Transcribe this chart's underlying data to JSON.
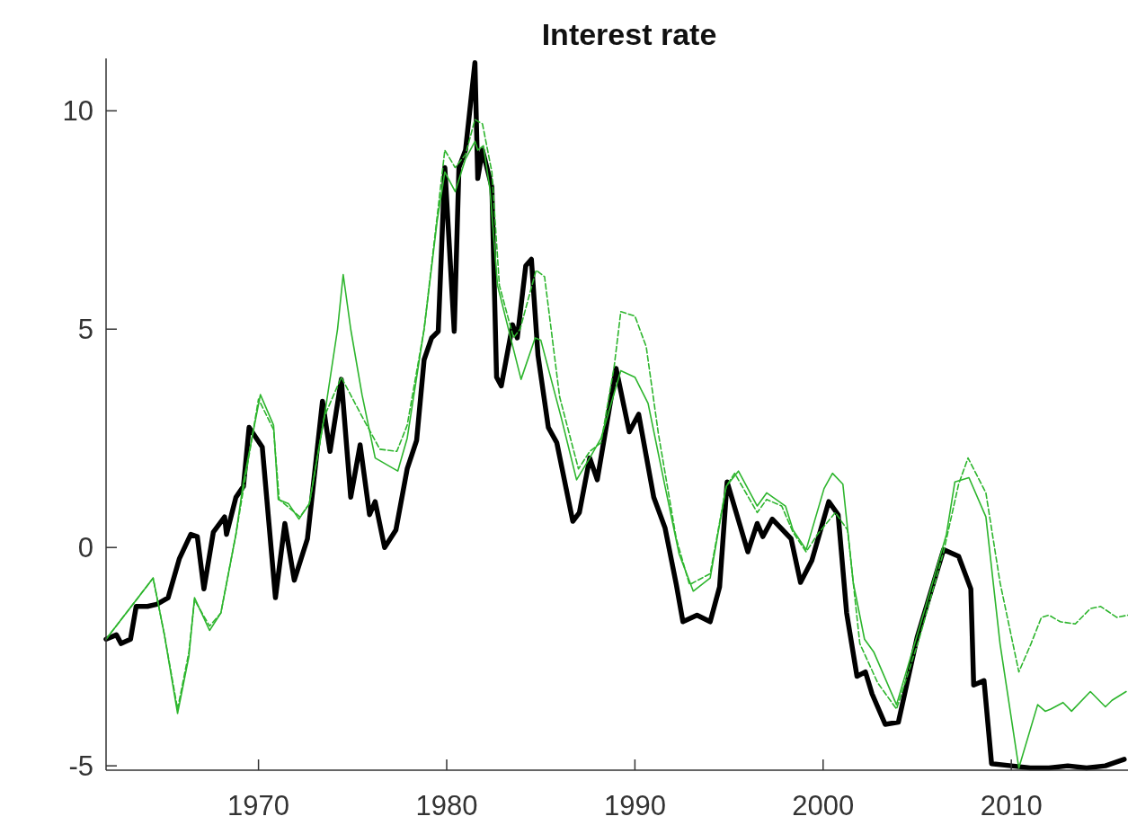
{
  "chart_data": {
    "type": "line",
    "title": "Interest rate",
    "xlim": [
      1961.9,
      2016.2
    ],
    "xticks": [
      1970,
      1980,
      1990,
      2000,
      2010
    ],
    "ylim": [
      -5.1,
      11.2
    ],
    "yticks": [
      -5,
      0,
      5,
      10
    ],
    "grid": false,
    "marker": "none",
    "series": [
      {
        "color": "#000000",
        "line_style": "solid",
        "x": [
          1961.9,
          1962.45,
          1962.7,
          1963.2,
          1963.5,
          1964.1,
          1964.6,
          1965.2,
          1965.8,
          1966.4,
          1966.75,
          1967.1,
          1967.6,
          1968.2,
          1968.3,
          1968.8,
          1969.2,
          1969.5,
          1970.2,
          1970.9,
          1971.4,
          1971.9,
          1972.6,
          1973.4,
          1973.8,
          1974.4,
          1974.9,
          1975.4,
          1975.9,
          1976.2,
          1976.7,
          1977.3,
          1977.9,
          1978.4,
          1978.8,
          1979.2,
          1979.55,
          1979.9,
          1980.4,
          1980.65,
          1981.0,
          1981.5,
          1981.65,
          1981.9,
          1982.4,
          1982.65,
          1982.9,
          1983.5,
          1983.75,
          1984.2,
          1984.5,
          1984.85,
          1985.4,
          1985.85,
          1986.7,
          1987.05,
          1987.6,
          1988.0,
          1989.0,
          1989.7,
          1990.2,
          1991.0,
          1991.6,
          1992.2,
          1992.55,
          1993.3,
          1994.0,
          1994.5,
          1994.9,
          1996.0,
          1996.5,
          1996.8,
          1997.3,
          1998.3,
          1998.8,
          1999.4,
          2000.3,
          2000.8,
          2001.25,
          2001.8,
          2002.25,
          2002.6,
          2003.3,
          2004.0,
          2005.0,
          2006.4,
          2007.2,
          2007.85,
          2008.0,
          2008.55,
          2008.95,
          2010.0,
          2011.0,
          2012.0,
          2013.0,
          2014.0,
          2015.0,
          2016.0
        ],
        "values": [
          -2.1,
          -2.0,
          -2.2,
          -2.1,
          -1.35,
          -1.35,
          -1.3,
          -1.15,
          -0.25,
          0.3,
          0.25,
          -0.95,
          0.35,
          0.7,
          0.3,
          1.15,
          1.4,
          2.75,
          2.3,
          -1.15,
          0.55,
          -0.75,
          0.2,
          3.35,
          2.2,
          3.85,
          1.15,
          2.35,
          0.75,
          1.05,
          0.0,
          0.4,
          1.8,
          2.45,
          4.3,
          4.8,
          4.95,
          8.7,
          4.95,
          8.7,
          9.1,
          11.1,
          8.45,
          9.1,
          8.25,
          3.9,
          3.7,
          5.1,
          4.8,
          6.45,
          6.6,
          4.4,
          2.75,
          2.4,
          0.6,
          0.8,
          2.05,
          1.55,
          4.1,
          2.65,
          3.05,
          1.15,
          0.45,
          -0.85,
          -1.7,
          -1.55,
          -1.7,
          -0.9,
          1.5,
          -0.1,
          0.55,
          0.25,
          0.65,
          0.2,
          -0.8,
          -0.3,
          1.05,
          0.75,
          -1.5,
          -2.95,
          -2.85,
          -3.35,
          -4.05,
          -4.0,
          -2.05,
          -0.05,
          -0.2,
          -0.95,
          -3.15,
          -3.05,
          -4.95,
          -5.0,
          -5.05,
          -5.05,
          -5.0,
          -5.05,
          -5.0,
          -4.85
        ]
      },
      {
        "color": "#2db52d",
        "line_style": "solid",
        "x": [
          1961.9,
          1964.4,
          1965.0,
          1965.7,
          1966.3,
          1966.6,
          1967.4,
          1968.0,
          1968.8,
          1969.2,
          1970.1,
          1970.8,
          1971.05,
          1971.6,
          1972.15,
          1972.7,
          1973.5,
          1974.2,
          1974.5,
          1974.9,
          1975.5,
          1976.2,
          1977.4,
          1977.9,
          1978.8,
          1979.5,
          1979.9,
          1980.45,
          1981.0,
          1981.5,
          1981.65,
          1981.95,
          1982.3,
          1982.7,
          1983.95,
          1984.7,
          1985.0,
          1986.1,
          1986.9,
          1987.6,
          1988.2,
          1989.25,
          1990.0,
          1990.7,
          1991.6,
          1992.35,
          1993.1,
          1994.0,
          1994.85,
          1995.5,
          1996.5,
          1997.0,
          1998.0,
          1998.4,
          1999.1,
          2000.05,
          2000.5,
          2001.05,
          2001.6,
          2002.2,
          2002.7,
          2003.9,
          2005.45,
          2006.55,
          2007.0,
          2007.75,
          2008.65,
          2009.4,
          2010.4,
          2011.4,
          2011.8,
          2012.1,
          2012.75,
          2013.2,
          2014.2,
          2015.0,
          2015.35,
          2016.1
        ],
        "values": [
          -2.1,
          -0.7,
          -2.0,
          -3.8,
          -2.5,
          -1.15,
          -1.9,
          -1.5,
          0.3,
          1.5,
          3.5,
          2.8,
          1.1,
          1.0,
          0.65,
          1.0,
          3.0,
          5.0,
          6.25,
          5.0,
          3.5,
          2.05,
          1.75,
          2.5,
          5.0,
          7.5,
          8.6,
          8.15,
          8.9,
          9.3,
          9.1,
          9.2,
          8.2,
          6.0,
          3.85,
          4.8,
          4.75,
          2.95,
          1.55,
          2.05,
          2.5,
          4.05,
          3.9,
          3.3,
          1.4,
          -0.15,
          -1.0,
          -0.7,
          1.4,
          1.75,
          0.95,
          1.25,
          0.95,
          0.4,
          -0.05,
          1.35,
          1.7,
          1.45,
          -0.8,
          -2.1,
          -2.4,
          -3.6,
          -1.35,
          0.3,
          1.5,
          1.6,
          0.7,
          -2.2,
          -5.05,
          -3.6,
          -3.75,
          -3.7,
          -3.55,
          -3.75,
          -3.3,
          -3.65,
          -3.5,
          -3.3
        ]
      },
      {
        "color": "#2db52d",
        "line_style": "dashed",
        "x": [
          1961.9,
          1964.4,
          1965.0,
          1965.7,
          1966.3,
          1966.6,
          1967.4,
          1968.0,
          1968.8,
          1970.0,
          1970.8,
          1971.1,
          1972.2,
          1972.7,
          1973.5,
          1974.4,
          1975.5,
          1976.45,
          1977.35,
          1977.9,
          1978.8,
          1979.9,
          1980.45,
          1981.0,
          1981.5,
          1981.9,
          1982.4,
          1982.8,
          1983.55,
          1983.9,
          1984.75,
          1985.2,
          1986.0,
          1987.0,
          1987.6,
          1988.2,
          1988.9,
          1989.25,
          1990.0,
          1990.6,
          1991.25,
          1992.2,
          1992.9,
          1994.0,
          1994.85,
          1995.3,
          1996.5,
          1997.0,
          1997.8,
          1998.4,
          1999.1,
          1999.7,
          2000.65,
          2001.3,
          2001.95,
          2002.9,
          2003.9,
          2005.1,
          2006.4,
          2007.2,
          2007.7,
          2008.65,
          2009.4,
          2010.4,
          2011.05,
          2011.6,
          2012.0,
          2012.6,
          2013.4,
          2014.2,
          2014.75,
          2015.6,
          2016.2
        ],
        "values": [
          -2.1,
          -0.7,
          -2.0,
          -3.7,
          -2.4,
          -1.2,
          -1.8,
          -1.5,
          0.3,
          3.4,
          2.7,
          1.1,
          0.7,
          1.0,
          3.0,
          3.9,
          3.0,
          2.25,
          2.2,
          2.8,
          5.0,
          9.1,
          8.7,
          9.0,
          9.8,
          9.7,
          8.6,
          6.0,
          4.8,
          5.0,
          6.35,
          6.2,
          3.45,
          1.8,
          2.2,
          2.4,
          4.15,
          5.4,
          5.3,
          4.6,
          2.6,
          0.2,
          -0.85,
          -0.6,
          1.4,
          1.7,
          0.8,
          1.1,
          0.95,
          0.35,
          -0.1,
          0.3,
          0.8,
          0.4,
          -2.2,
          -3.1,
          -3.7,
          -2.1,
          -0.1,
          1.45,
          2.05,
          1.25,
          -0.8,
          -2.85,
          -2.2,
          -1.6,
          -1.55,
          -1.7,
          -1.75,
          -1.4,
          -1.35,
          -1.6,
          -1.55
        ]
      }
    ]
  }
}
